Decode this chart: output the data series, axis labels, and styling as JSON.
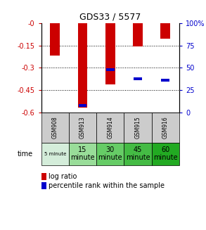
{
  "title": "GDS33 / 5577",
  "samples": [
    "GSM908",
    "GSM913",
    "GSM914",
    "GSM915",
    "GSM916"
  ],
  "time_labels_display": [
    "5 minute",
    "15\nminute",
    "30\nminute",
    "45\nminute",
    "60\nminute"
  ],
  "time_colors": [
    "#d4edda",
    "#99dd99",
    "#66cc66",
    "#44bb44",
    "#22aa22"
  ],
  "log_ratios": [
    -0.22,
    -0.565,
    -0.41,
    -0.155,
    -0.105
  ],
  "percentile_ranks_pct": [
    null,
    8,
    48,
    38,
    36
  ],
  "ylim_left": [
    -0.6,
    0.0
  ],
  "ylim_right": [
    0,
    100
  ],
  "yticks_left": [
    0.0,
    -0.15,
    -0.3,
    -0.45,
    -0.6
  ],
  "ytick_labels_left": [
    "-0",
    "-0.15",
    "-0.3",
    "-0.45",
    "-0.6"
  ],
  "yticks_right": [
    0,
    25,
    50,
    75,
    100
  ],
  "ytick_labels_right": [
    "0",
    "25",
    "50",
    "75",
    "100%"
  ],
  "left_color": "#cc0000",
  "right_color": "#0000cc",
  "bar_color_red": "#cc0000",
  "bar_color_blue": "#0000cc",
  "sample_bg": "#cccccc",
  "fig_width": 2.93,
  "fig_height": 3.27,
  "dpi": 100
}
